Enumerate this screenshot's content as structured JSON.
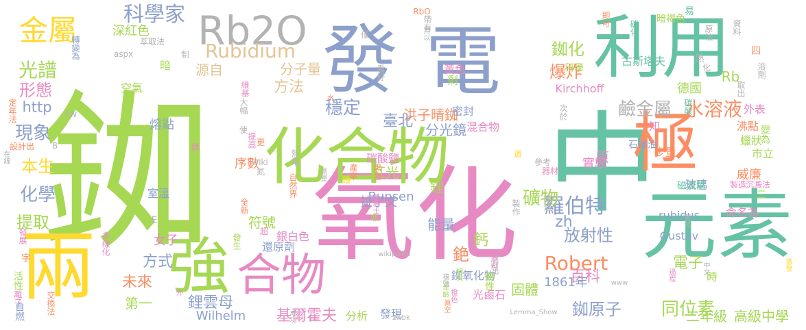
{
  "colors": {
    "green": "#a6d854",
    "blue": "#8da0cb",
    "pink": "#e78ac3",
    "teal": "#66c2a5",
    "orange": "#fc8d62",
    "yellow": "#ffd92f",
    "tan": "#e5c494",
    "gray": "#b3b3b3"
  },
  "words": [
    {
      "text": "銣",
      "color": "green"
    },
    {
      "text": "中",
      "color": "teal"
    },
    {
      "text": "氧化",
      "color": "pink"
    },
    {
      "text": "發",
      "color": "blue"
    },
    {
      "text": "電",
      "color": "blue"
    },
    {
      "text": "利用",
      "color": "teal"
    },
    {
      "text": "元素",
      "color": "teal"
    },
    {
      "text": "極",
      "color": "orange"
    },
    {
      "text": "兩",
      "color": "yellow"
    },
    {
      "text": "化合物",
      "color": "green"
    },
    {
      "text": "強",
      "color": "green"
    },
    {
      "text": "合物",
      "color": "pink"
    },
    {
      "text": "Rb2O",
      "color": "gray"
    },
    {
      "text": "金屬",
      "color": "yellow"
    },
    {
      "text": "科學家",
      "color": "blue"
    },
    {
      "text": "Rubidium",
      "color": "tan"
    },
    {
      "text": "光譜",
      "color": "green"
    },
    {
      "text": "形態",
      "color": "pink"
    },
    {
      "text": "http",
      "color": "blue"
    },
    {
      "text": "現象",
      "color": "blue"
    },
    {
      "text": "本生",
      "color": "yellow"
    },
    {
      "text": "化學",
      "color": "blue"
    },
    {
      "text": "提取",
      "color": "green"
    },
    {
      "text": "方式",
      "color": "blue"
    },
    {
      "text": "未來",
      "color": "orange"
    },
    {
      "text": "第一",
      "color": "green"
    },
    {
      "text": "鋰雲母",
      "color": "blue"
    },
    {
      "text": "Robert",
      "color": "orange"
    },
    {
      "text": "羅伯特",
      "color": "blue"
    },
    {
      "text": "礦物",
      "color": "green"
    },
    {
      "text": "鹼金屬",
      "color": "gray"
    },
    {
      "text": "水溶液",
      "color": "orange"
    },
    {
      "text": "爆炸",
      "color": "orange"
    },
    {
      "text": "銣化",
      "color": "green"
    },
    {
      "text": "放射性",
      "color": "blue"
    },
    {
      "text": "電子",
      "color": "green"
    },
    {
      "text": "同位素",
      "color": "green"
    },
    {
      "text": "銣原子",
      "color": "blue"
    },
    {
      "text": "穩定",
      "color": "blue"
    },
    {
      "text": "方法",
      "color": "tan"
    },
    {
      "text": "分子量",
      "color": "tan"
    },
    {
      "text": "源自",
      "color": "tan"
    },
    {
      "text": "洪子晴銣",
      "color": "orange"
    },
    {
      "text": "臺北",
      "color": "blue"
    },
    {
      "text": "分光鏡",
      "color": "blue"
    },
    {
      "text": "百科",
      "color": "pink"
    },
    {
      "text": "1861年",
      "color": "blue"
    },
    {
      "text": "Wilhelm",
      "color": "blue"
    },
    {
      "text": "基爾霍夫",
      "color": "pink"
    },
    {
      "text": "二年級",
      "color": "green"
    },
    {
      "text": "高級中學",
      "color": "green"
    },
    {
      "text": "能量",
      "color": "blue"
    },
    {
      "text": "鈣",
      "color": "green"
    },
    {
      "text": "銫",
      "color": "orange"
    },
    {
      "text": "拉丁文",
      "color": "blue"
    },
    {
      "text": "Bunsen",
      "color": "blue"
    },
    {
      "text": "紅光",
      "color": "green"
    },
    {
      "text": "鋰",
      "color": "green"
    },
    {
      "text": "原",
      "color": "pink"
    },
    {
      "text": "實驗",
      "color": "pink"
    },
    {
      "text": "zh",
      "color": "blue"
    },
    {
      "text": "Rb",
      "color": "green"
    },
    {
      "text": "德國",
      "color": "green"
    },
    {
      "text": "古斯塔夫",
      "color": "teal"
    },
    {
      "text": "暗褐色",
      "color": "green"
    },
    {
      "text": "科學",
      "color": "green"
    },
    {
      "text": "Kirchhoff",
      "color": "pink"
    },
    {
      "text": "熔點",
      "color": "blue"
    },
    {
      "text": "序數",
      "color": "orange"
    },
    {
      "text": "符號",
      "color": "green"
    },
    {
      "text": "女子",
      "color": "pink"
    },
    {
      "text": "室溫",
      "color": "blue"
    },
    {
      "text": "深紅色",
      "color": "green"
    },
    {
      "text": "暗",
      "color": "green"
    },
    {
      "text": "空氣",
      "color": "green"
    },
    {
      "text": "原子",
      "color": "green"
    },
    {
      "text": "Gustav",
      "color": "blue"
    },
    {
      "text": "rubidus",
      "color": "blue"
    },
    {
      "text": "命名為",
      "color": "pink"
    },
    {
      "text": "玻璃",
      "color": "blue"
    },
    {
      "text": "威廉",
      "color": "orange"
    },
    {
      "text": "市立",
      "color": "green"
    },
    {
      "text": "少量",
      "color": "orange"
    },
    {
      "text": "外表",
      "color": "pink"
    },
    {
      "text": "沸點",
      "color": "orange"
    },
    {
      "text": "蠟狀",
      "color": "green"
    },
    {
      "text": "固體",
      "color": "green"
    },
    {
      "text": "光鹵石",
      "color": "pink"
    },
    {
      "text": "銣氧化物",
      "color": "blue"
    },
    {
      "text": "鹼性",
      "color": "green"
    },
    {
      "text": "分析",
      "color": "green"
    },
    {
      "text": "發現",
      "color": "blue"
    },
    {
      "text": "還原劑",
      "color": "blue"
    },
    {
      "text": "銀白色",
      "color": "pink"
    },
    {
      "text": "時",
      "color": "green"
    },
    {
      "text": "黃色",
      "color": "pink"
    },
    {
      "text": "剩",
      "color": "green"
    },
    {
      "text": "密封",
      "color": "blue"
    },
    {
      "text": "混合物",
      "color": "pink"
    },
    {
      "text": "碳酸鹽",
      "color": "pink"
    },
    {
      "text": "石蠟油",
      "color": "blue"
    },
    {
      "text": "道",
      "color": "yellow"
    },
    {
      "text": "器材",
      "color": "pink"
    },
    {
      "text": "磁流體",
      "color": "teal"
    },
    {
      "text": "製造",
      "color": "pink"
    },
    {
      "text": "沉澱法",
      "color": "pink"
    },
    {
      "text": "RbO",
      "color": "orange"
    },
    {
      "text": "帶有",
      "color": "gray"
    },
    {
      "text": "用以",
      "color": "gray"
    },
    {
      "text": "僅",
      "color": "gray"
    },
    {
      "text": "即可",
      "color": "orange"
    },
    {
      "text": "碳化",
      "color": "teal"
    },
    {
      "text": "原法",
      "color": "gray"
    },
    {
      "text": "資料",
      "color": "gray"
    },
    {
      "text": "易",
      "color": "teal"
    },
    {
      "text": "熱",
      "color": "gray"
    },
    {
      "text": "化",
      "color": "gray"
    },
    {
      "text": "溶劑",
      "color": "gray"
    },
    {
      "text": "取出",
      "color": "gray"
    },
    {
      "text": "四",
      "color": "orange"
    },
    {
      "text": "碳酸",
      "color": "teal"
    },
    {
      "text": "知",
      "color": "pink"
    },
    {
      "text": "變為",
      "color": "green"
    },
    {
      "text": "三",
      "color": "green"
    },
    {
      "text": "次於",
      "color": "gray"
    },
    {
      "text": "參考",
      "color": "gray"
    },
    {
      "text": "萃取法",
      "color": "gray"
    },
    {
      "text": "aspx",
      "color": "gray"
    },
    {
      "text": "轉變為",
      "color": "blue"
    },
    {
      "text": "制",
      "color": "gray"
    },
    {
      "text": "看好",
      "color": "gray"
    },
    {
      "text": "水",
      "color": "orange"
    },
    {
      "text": "tw",
      "color": "gray"
    },
    {
      "text": "定年法",
      "color": "orange"
    },
    {
      "text": "設計出",
      "color": "orange"
    },
    {
      "text": "B",
      "color": "gray"
    },
    {
      "text": "在線",
      "color": "gray"
    },
    {
      "text": "維基",
      "color": "pink"
    },
    {
      "text": "大幅",
      "color": "gray"
    },
    {
      "text": "使",
      "color": "gray"
    },
    {
      "text": "鎂",
      "color": "pink"
    },
    {
      "text": "提高",
      "color": "pink"
    },
    {
      "text": "更",
      "color": "orange"
    },
    {
      "text": "wiki",
      "color": "gray"
    },
    {
      "text": "氮",
      "color": "gray"
    },
    {
      "text": "測量",
      "color": "gray"
    },
    {
      "text": "產率",
      "color": "orange"
    },
    {
      "text": "熱電",
      "color": "gray"
    },
    {
      "text": "黑色",
      "color": "orange"
    },
    {
      "text": "自然界",
      "color": "orange"
    },
    {
      "text": "全新",
      "color": "orange"
    },
    {
      "text": "鐘",
      "color": "yellow"
    },
    {
      "text": "路易士鹼",
      "color": "pink"
    },
    {
      "text": "非",
      "color": "green"
    },
    {
      "text": "鋤遇",
      "color": "gray"
    },
    {
      "text": "製作",
      "color": "gray"
    },
    {
      "text": "超",
      "color": "pink"
    },
    {
      "text": "發生",
      "color": "green"
    },
    {
      "text": "E",
      "color": "gray"
    },
    {
      "text": "wikipedia",
      "color": "gray"
    },
    {
      "text": "多樣化",
      "color": "pink"
    },
    {
      "text": "發展",
      "color": "pink"
    },
    {
      "text": "字",
      "color": "orange"
    },
    {
      "text": "活性",
      "color": "green"
    },
    {
      "text": "離子",
      "color": "pink"
    },
    {
      "text": "交換法",
      "color": "orange"
    },
    {
      "text": "自燃",
      "color": "blue"
    },
    {
      "text": "外",
      "color": "pink"
    },
    {
      "text": "成功",
      "color": "gray"
    },
    {
      "text": "zwbk",
      "color": "gray"
    },
    {
      "text": "橙色",
      "color": "pink"
    },
    {
      "text": "眞空",
      "color": "orange"
    },
    {
      "text": "複鹽",
      "color": "gray"
    },
    {
      "text": "年齡",
      "color": "green"
    },
    {
      "text": "綠共",
      "color": "green"
    },
    {
      "text": "放射出",
      "color": "gray"
    },
    {
      "text": "原料",
      "color": "pink"
    },
    {
      "text": "Lemma_Show",
      "color": "gray"
    },
    {
      "text": "過程",
      "color": "pink"
    },
    {
      "text": "www",
      "color": "gray"
    },
    {
      "text": "中文",
      "color": "gray"
    },
    {
      "text": "激發",
      "color": "yellow"
    },
    {
      "text": "氧化",
      "color": "gray"
    }
  ]
}
